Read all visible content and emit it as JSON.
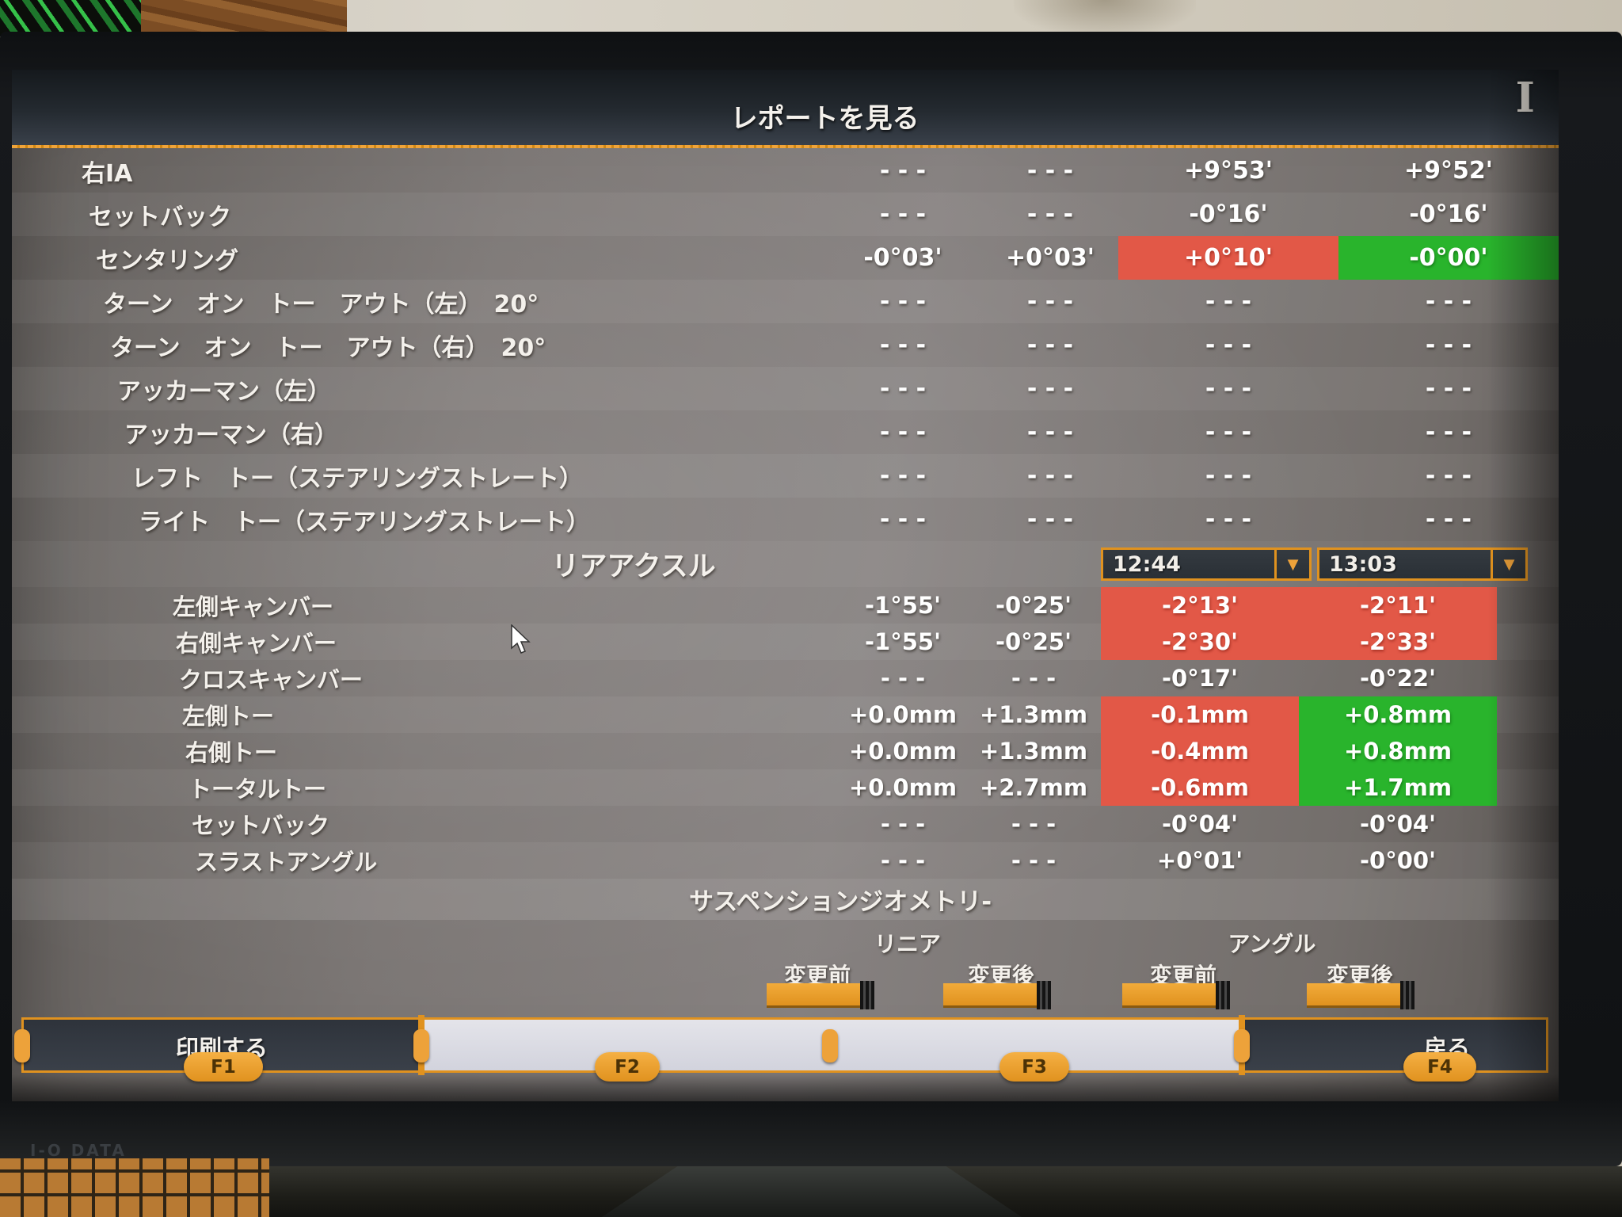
{
  "screen_title": "レポートを見る",
  "front_axle": {
    "rows": [
      {
        "label": "右IA",
        "values": [
          "- - -",
          "- - -",
          "+9°53'",
          "+9°52'"
        ],
        "states": [
          "",
          "",
          "",
          ""
        ]
      },
      {
        "label": "セットバック",
        "values": [
          "- - -",
          "- - -",
          "-0°16'",
          "-0°16'"
        ],
        "states": [
          "",
          "",
          "",
          ""
        ]
      },
      {
        "label": "センタリング",
        "values": [
          "-0°03'",
          "+0°03'",
          "+0°10'",
          "-0°00'"
        ],
        "states": [
          "",
          "",
          "red",
          "green"
        ]
      },
      {
        "label": "ターン　オン　トー　アウト（左）　20°",
        "values": [
          "- - -",
          "- - -",
          "- - -",
          "- - -"
        ],
        "states": [
          "",
          "",
          "",
          ""
        ]
      },
      {
        "label": "ターン　オン　トー　アウト（右）　20°",
        "values": [
          "- - -",
          "- - -",
          "- - -",
          "- - -"
        ],
        "states": [
          "",
          "",
          "",
          ""
        ]
      },
      {
        "label": "アッカーマン（左）",
        "values": [
          "- - -",
          "- - -",
          "- - -",
          "- - -"
        ],
        "states": [
          "",
          "",
          "",
          ""
        ]
      },
      {
        "label": "アッカーマン（右）",
        "values": [
          "- - -",
          "- - -",
          "- - -",
          "- - -"
        ],
        "states": [
          "",
          "",
          "",
          ""
        ]
      },
      {
        "label": "レフト　トー（ステアリングストレート）",
        "values": [
          "- - -",
          "- - -",
          "- - -",
          "- - -"
        ],
        "states": [
          "",
          "",
          "",
          ""
        ]
      },
      {
        "label": "ライト　トー（ステアリングストレート）",
        "values": [
          "- - -",
          "- - -",
          "- - -",
          "- - -"
        ],
        "states": [
          "",
          "",
          "",
          ""
        ]
      }
    ]
  },
  "rear_axle": {
    "header": "リアアクスル",
    "time_dropdown_left": "12:44",
    "time_dropdown_right": "13:03",
    "dropdown_arrow": "▼",
    "rows": [
      {
        "label": "左側キャンバー",
        "values": [
          "-1°55'",
          "-0°25'",
          "-2°13'",
          "-2°11'"
        ],
        "states": [
          "",
          "",
          "red",
          "red"
        ]
      },
      {
        "label": "右側キャンバー",
        "values": [
          "-1°55'",
          "-0°25'",
          "-2°30'",
          "-2°33'"
        ],
        "states": [
          "",
          "",
          "red",
          "red"
        ]
      },
      {
        "label": "クロスキャンバー",
        "values": [
          "- - -",
          "- - -",
          "-0°17'",
          "-0°22'"
        ],
        "states": [
          "",
          "",
          "",
          ""
        ]
      },
      {
        "label": "左側トー",
        "values": [
          "+0.0mm",
          "+1.3mm",
          "-0.1mm",
          "+0.8mm"
        ],
        "states": [
          "",
          "",
          "red",
          "green"
        ]
      },
      {
        "label": "右側トー",
        "values": [
          "+0.0mm",
          "+1.3mm",
          "-0.4mm",
          "+0.8mm"
        ],
        "states": [
          "",
          "",
          "red",
          "green"
        ]
      },
      {
        "label": "トータルトー",
        "values": [
          "+0.0mm",
          "+2.7mm",
          "-0.6mm",
          "+1.7mm"
        ],
        "states": [
          "",
          "",
          "red",
          "green"
        ]
      },
      {
        "label": "セットバック",
        "values": [
          "- - -",
          "- - -",
          "-0°04'",
          "-0°04'"
        ],
        "states": [
          "",
          "",
          "",
          ""
        ]
      },
      {
        "label": "スラストアングル",
        "values": [
          "- - -",
          "- - -",
          "+0°01'",
          "-0°00'"
        ],
        "states": [
          "",
          "",
          "",
          ""
        ]
      }
    ]
  },
  "suspension": {
    "header": "サスペンションジオメトリ-",
    "group_left": "リニア",
    "group_right": "アングル",
    "sub_headers": [
      "変更前",
      "変更後",
      "変更前",
      "変更後"
    ]
  },
  "function_bar": {
    "print_label": "印刷する",
    "back_label": "戻る",
    "keys": [
      "F1",
      "F2",
      "F3",
      "F4"
    ]
  },
  "monitor_brand": "I-O DATA",
  "colors": {
    "accent_orange": "#e0921f",
    "alert_red": "#e25847",
    "ok_green": "#29b42c",
    "titlebar_dark": "#242a30",
    "screen_gray": "#7b7674"
  }
}
